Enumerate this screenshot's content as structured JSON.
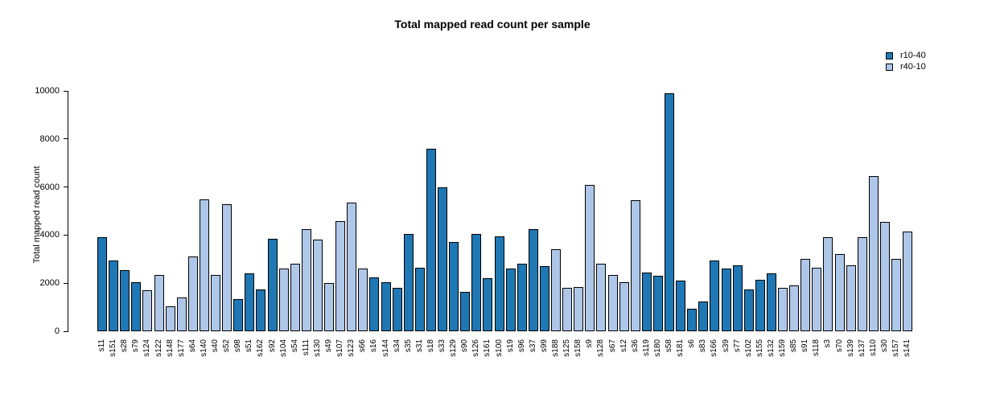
{
  "title": "Total mapped read count per sample",
  "chart_data": {
    "type": "bar",
    "title": "Total mapped read count per sample",
    "xlabel": "",
    "ylabel": "Total mapped read count",
    "ylim": [
      0,
      10000
    ],
    "yticks": [
      0,
      2000,
      4000,
      6000,
      8000,
      10000
    ],
    "grid": false,
    "legend_position": "top-right",
    "legend": [
      {
        "label": "r10-40",
        "color": "#1F77B4"
      },
      {
        "label": "r40-10",
        "color": "#AEC7E8"
      }
    ],
    "bar_edge_color": "#000000",
    "categories": [
      "s11",
      "s151",
      "s28",
      "s79",
      "s124",
      "s122",
      "s148",
      "s177",
      "s64",
      "s140",
      "s40",
      "s52",
      "s98",
      "s51",
      "s162",
      "s92",
      "s104",
      "s54",
      "s111",
      "s130",
      "s49",
      "s107",
      "s123",
      "s66",
      "s16",
      "s144",
      "s34",
      "s35",
      "s31",
      "s18",
      "s33",
      "s129",
      "s90",
      "s126",
      "s161",
      "s100",
      "s19",
      "s96",
      "s37",
      "s99",
      "s188",
      "s125",
      "s158",
      "s9",
      "s128",
      "s67",
      "s12",
      "s36",
      "s119",
      "s180",
      "s58",
      "s181",
      "s6",
      "s83",
      "s166",
      "s39",
      "s77",
      "s102",
      "s155",
      "s132",
      "s159",
      "s85",
      "s91",
      "s118",
      "s3",
      "s70",
      "s139",
      "s137",
      "s110",
      "s30",
      "s157",
      "s141"
    ],
    "values": [
      3900,
      2950,
      2550,
      2050,
      1700,
      2350,
      1050,
      1400,
      3100,
      5500,
      2350,
      5300,
      1350,
      2400,
      1750,
      3850,
      2600,
      2800,
      4250,
      3800,
      2000,
      4600,
      5350,
      2600,
      2250,
      2050,
      1800,
      4050,
      2650,
      7600,
      6000,
      3700,
      1650,
      4050,
      2200,
      3950,
      2600,
      2800,
      4250,
      2700,
      3400,
      1800,
      1850,
      6100,
      2800,
      2350,
      2050,
      5450,
      2450,
      2300,
      9900,
      2100,
      950,
      1250,
      2950,
      2600,
      2750,
      1750,
      2150,
      2400,
      1800,
      1900,
      3000,
      2650,
      3900,
      3200,
      2750,
      3900,
      6450,
      4550,
      3000,
      4150
    ],
    "groups": [
      "r10-40",
      "r10-40",
      "r10-40",
      "r10-40",
      "r40-10",
      "r40-10",
      "r40-10",
      "r40-10",
      "r40-10",
      "r40-10",
      "r40-10",
      "r40-10",
      "r10-40",
      "r10-40",
      "r10-40",
      "r10-40",
      "r40-10",
      "r40-10",
      "r40-10",
      "r40-10",
      "r40-10",
      "r40-10",
      "r40-10",
      "r40-10",
      "r10-40",
      "r10-40",
      "r10-40",
      "r10-40",
      "r10-40",
      "r10-40",
      "r10-40",
      "r10-40",
      "r10-40",
      "r10-40",
      "r10-40",
      "r10-40",
      "r10-40",
      "r10-40",
      "r10-40",
      "r10-40",
      "r40-10",
      "r40-10",
      "r40-10",
      "r40-10",
      "r40-10",
      "r40-10",
      "r40-10",
      "r40-10",
      "r10-40",
      "r10-40",
      "r10-40",
      "r10-40",
      "r10-40",
      "r10-40",
      "r10-40",
      "r10-40",
      "r10-40",
      "r10-40",
      "r10-40",
      "r10-40",
      "r40-10",
      "r40-10",
      "r40-10",
      "r40-10",
      "r40-10",
      "r40-10",
      "r40-10",
      "r40-10",
      "r40-10",
      "r40-10",
      "r40-10",
      "r40-10"
    ]
  }
}
